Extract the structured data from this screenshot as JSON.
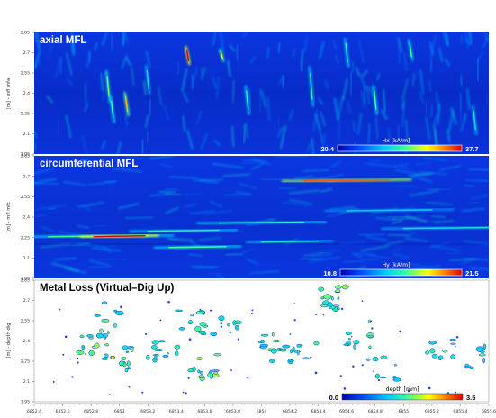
{
  "x_ticks": [
    "6852.4",
    "6852.6",
    "6852.8",
    "6853",
    "6853.2",
    "6853.4",
    "6853.6",
    "6853.8",
    "6854",
    "6854.2",
    "6854.4",
    "6854.6",
    "6854.8",
    "6855",
    "6855.2",
    "6855.4",
    "6855.6"
  ],
  "colors": {
    "background": "#0a2fd8",
    "accent_hot": "#ff1a00",
    "loss_bg": "#ffffff"
  },
  "chart_data": [
    {
      "type": "heatmap",
      "title": "axial MFL",
      "ylabel": "[m] - mfl mfa",
      "y_ticks": [
        "2.85",
        "2.7",
        "2.55",
        "2.4",
        "2.25",
        "2.1",
        "1.95"
      ],
      "ylim": [
        1.95,
        2.85
      ],
      "colorbar": {
        "label": "Hx [kA/m]",
        "min": "20.4",
        "max": "37.7"
      },
      "hotspots": [
        {
          "x": 6852.92,
          "y": 2.45,
          "v": 0.6,
          "len": 0.22
        },
        {
          "x": 6852.95,
          "y": 2.28,
          "v": 0.55,
          "len": 0.18
        },
        {
          "x": 6853.05,
          "y": 2.32,
          "v": 0.8,
          "len": 0.16
        },
        {
          "x": 6853.2,
          "y": 2.5,
          "v": 0.45,
          "len": 0.2
        },
        {
          "x": 6853.48,
          "y": 2.68,
          "v": 1.0,
          "len": 0.12
        },
        {
          "x": 6853.72,
          "y": 2.68,
          "v": 0.7,
          "len": 0.08
        },
        {
          "x": 6853.9,
          "y": 2.35,
          "v": 0.5,
          "len": 0.2
        },
        {
          "x": 6854.35,
          "y": 2.45,
          "v": 0.5,
          "len": 0.28
        },
        {
          "x": 6854.6,
          "y": 2.7,
          "v": 0.5,
          "len": 0.2
        },
        {
          "x": 6854.8,
          "y": 2.35,
          "v": 0.55,
          "len": 0.2
        },
        {
          "x": 6855.05,
          "y": 2.72,
          "v": 0.55,
          "len": 0.14
        },
        {
          "x": 6855.5,
          "y": 2.2,
          "v": 0.45,
          "len": 0.2
        }
      ]
    },
    {
      "type": "heatmap",
      "title": "circumferential MFL",
      "ylabel": "[m] - mfl mfc",
      "y_ticks": [
        "2.85",
        "2.7",
        "2.55",
        "2.4",
        "2.25",
        "2.1",
        "1.95"
      ],
      "ylim": [
        1.95,
        2.85
      ],
      "colorbar": {
        "label": "Hy [kA/m]",
        "min": "10.8",
        "max": "21.5"
      },
      "hotspots": [
        {
          "x": 6852.85,
          "y": 2.26,
          "v": 0.55,
          "len": 0.35
        },
        {
          "x": 6853.0,
          "y": 2.26,
          "v": 1.0,
          "len": 0.18
        },
        {
          "x": 6853.45,
          "y": 2.3,
          "v": 0.5,
          "len": 0.25
        },
        {
          "x": 6853.55,
          "y": 2.18,
          "v": 0.55,
          "len": 0.2
        },
        {
          "x": 6854.0,
          "y": 2.36,
          "v": 0.5,
          "len": 0.3
        },
        {
          "x": 6854.2,
          "y": 2.22,
          "v": 0.45,
          "len": 0.2
        },
        {
          "x": 6854.6,
          "y": 2.67,
          "v": 0.9,
          "len": 0.3
        },
        {
          "x": 6854.9,
          "y": 2.45,
          "v": 0.4,
          "len": 0.3
        },
        {
          "x": 6855.3,
          "y": 2.32,
          "v": 0.45,
          "len": 0.3
        }
      ]
    },
    {
      "type": "scatter",
      "title": "Metal Loss (Virtual–Dig Up)",
      "ylabel": "[m] - depth dig",
      "y_ticks": [
        "2.85",
        "2.7",
        "2.55",
        "2.4",
        "2.25",
        "2.1",
        "1.95"
      ],
      "ylim": [
        1.95,
        2.85
      ],
      "colorbar": {
        "label": "depth [mm]",
        "min": "0.0",
        "max": "3.5"
      },
      "clusters": [
        {
          "x": 6852.82,
          "y": 2.38,
          "n": 14,
          "max_depth": 1.6
        },
        {
          "x": 6852.9,
          "y": 2.6,
          "n": 6,
          "max_depth": 1.2
        },
        {
          "x": 6853.0,
          "y": 2.28,
          "n": 16,
          "max_depth": 2.2
        },
        {
          "x": 6853.3,
          "y": 2.3,
          "n": 12,
          "max_depth": 1.0
        },
        {
          "x": 6853.5,
          "y": 2.55,
          "n": 12,
          "max_depth": 1.3
        },
        {
          "x": 6853.6,
          "y": 2.2,
          "n": 14,
          "max_depth": 1.6
        },
        {
          "x": 6853.75,
          "y": 2.55,
          "n": 8,
          "max_depth": 1.0
        },
        {
          "x": 6854.1,
          "y": 2.35,
          "n": 14,
          "max_depth": 1.4
        },
        {
          "x": 6854.3,
          "y": 2.3,
          "n": 10,
          "max_depth": 1.0
        },
        {
          "x": 6854.5,
          "y": 2.7,
          "n": 16,
          "max_depth": 1.4
        },
        {
          "x": 6854.7,
          "y": 2.45,
          "n": 10,
          "max_depth": 1.2
        },
        {
          "x": 6854.85,
          "y": 2.2,
          "n": 8,
          "max_depth": 1.0
        },
        {
          "x": 6855.25,
          "y": 2.32,
          "n": 10,
          "max_depth": 1.2
        },
        {
          "x": 6855.5,
          "y": 2.28,
          "n": 8,
          "max_depth": 1.3
        }
      ]
    }
  ]
}
